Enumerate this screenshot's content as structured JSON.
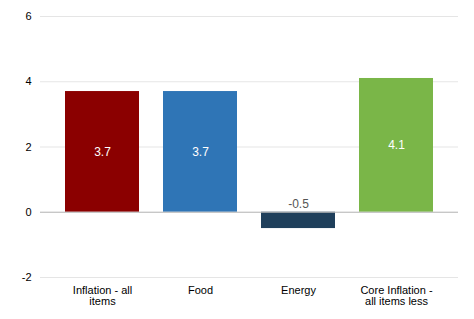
{
  "chart_data": {
    "type": "bar",
    "categories": [
      "Inflation - all\nitems",
      "Food",
      "Energy",
      "Core Inflation -\nall items less"
    ],
    "values": [
      3.7,
      3.7,
      -0.5,
      4.1
    ],
    "colors": [
      "#8B0000",
      "#2F75B6",
      "#1F3F5B",
      "#7AB648"
    ],
    "ylim": [
      -2,
      6
    ],
    "yticks": [
      -2,
      0,
      2,
      4,
      6
    ],
    "grid": true,
    "data_labels": true
  }
}
